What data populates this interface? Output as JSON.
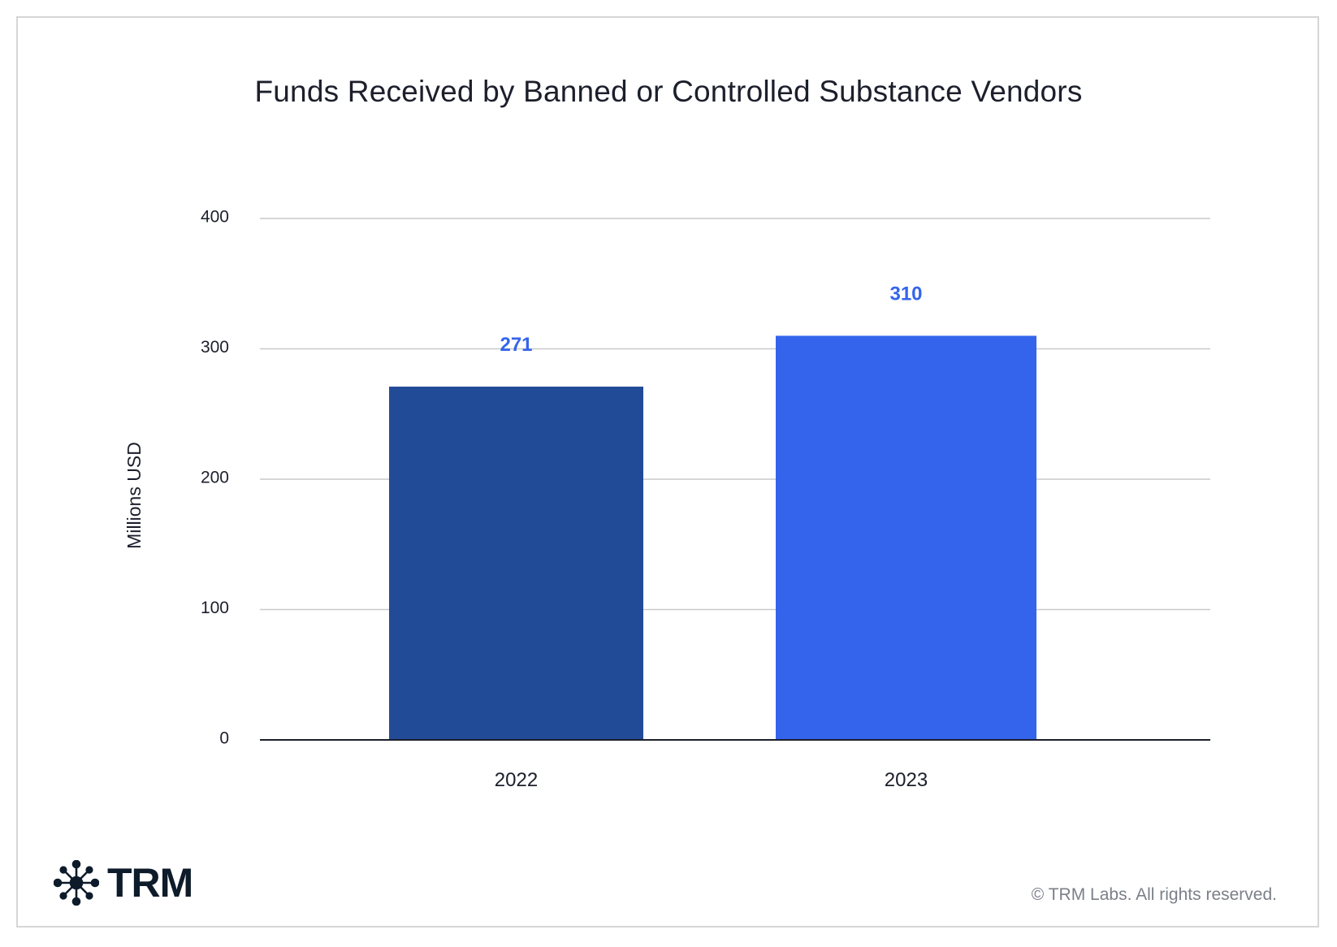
{
  "chart_data": {
    "type": "bar",
    "title": "Funds Received by Banned or Controlled Substance Vendors",
    "xlabel": "",
    "ylabel": "Millions USD",
    "categories": [
      "2022",
      "2023"
    ],
    "values": [
      271,
      310
    ],
    "data_labels": [
      "271",
      "310"
    ],
    "ylim": [
      0,
      400
    ],
    "yticks": [
      0,
      100,
      200,
      300,
      400
    ],
    "ytick_labels": [
      "0",
      "100",
      "200",
      "300",
      "400"
    ],
    "grid": true,
    "legend": "none",
    "colors": [
      "#224b97",
      "#3464eb"
    ],
    "label_color": "#3464eb"
  },
  "branding": {
    "logo_text": "TRM",
    "logo_icon": "network-star-icon",
    "copyright": "© TRM Labs. All rights reserved."
  }
}
